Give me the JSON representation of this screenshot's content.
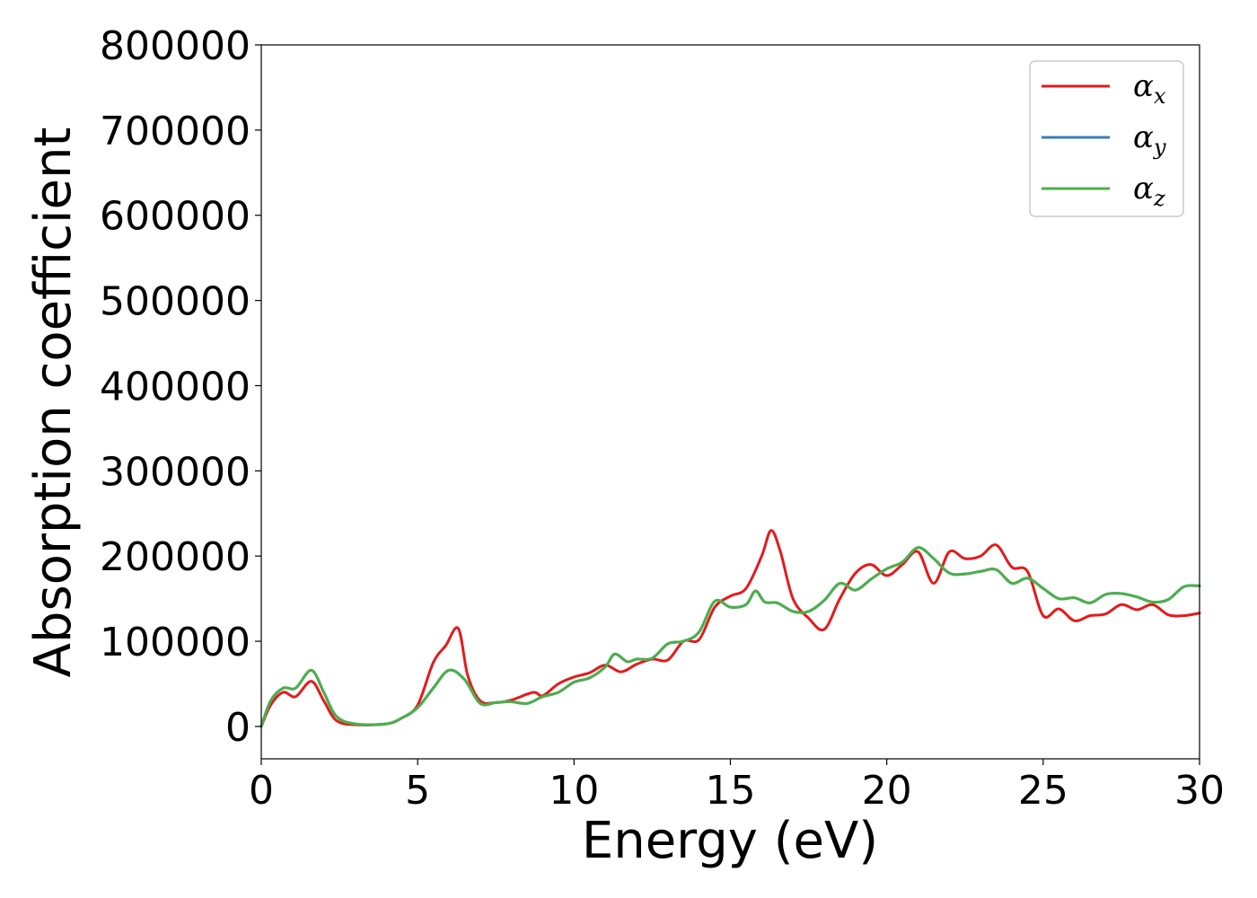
{
  "chart_data": {
    "type": "line",
    "title": "",
    "xlabel": "Energy (eV)",
    "ylabel": "Absorption coefficient",
    "xlim": [
      0,
      30
    ],
    "ylim": [
      -38000,
      800000
    ],
    "xticks": [
      0,
      5,
      10,
      15,
      20,
      25,
      30
    ],
    "xtick_labels": [
      "0",
      "5",
      "10",
      "15",
      "20",
      "25",
      "30"
    ],
    "yticks": [
      0,
      100000,
      200000,
      300000,
      400000,
      500000,
      600000,
      700000,
      800000
    ],
    "ytick_labels": [
      "0",
      "100000",
      "200000",
      "300000",
      "400000",
      "500000",
      "600000",
      "700000",
      "800000"
    ],
    "grid": false,
    "legend_position": "top-right",
    "series": [
      {
        "name": "α_x",
        "legend_symbol": "α",
        "legend_subscript": "x",
        "color": "#e41a1c",
        "x": [
          0,
          0.3,
          0.7,
          1.1,
          1.6,
          2.0,
          2.4,
          3.0,
          4.0,
          4.5,
          5.0,
          5.5,
          5.9,
          6.3,
          6.6,
          7.0,
          7.5,
          8.0,
          8.7,
          9.0,
          9.5,
          10.0,
          10.5,
          11.0,
          11.5,
          12.0,
          12.5,
          13.0,
          13.5,
          14.0,
          14.5,
          15.0,
          15.5,
          16.0,
          16.3,
          16.6,
          17.0,
          17.5,
          18.0,
          18.5,
          19.0,
          19.5,
          20.0,
          20.5,
          21.0,
          21.5,
          22.0,
          22.5,
          23.0,
          23.5,
          24.0,
          24.5,
          25.0,
          25.5,
          26.0,
          26.5,
          27.0,
          27.5,
          28.0,
          28.5,
          29.0,
          29.5,
          30.0
        ],
        "values": [
          0,
          25000,
          40000,
          35000,
          53000,
          30000,
          7000,
          2000,
          3000,
          10000,
          25000,
          75000,
          95000,
          115000,
          60000,
          30000,
          28000,
          31000,
          40000,
          36000,
          50000,
          58000,
          63000,
          72000,
          64000,
          73000,
          79000,
          78000,
          100000,
          102000,
          140000,
          153000,
          162000,
          200000,
          230000,
          205000,
          150000,
          127000,
          114000,
          150000,
          180000,
          190000,
          177000,
          190000,
          205000,
          168000,
          205000,
          197000,
          200000,
          213000,
          187000,
          182000,
          130000,
          138000,
          124000,
          130000,
          132000,
          143000,
          137000,
          143000,
          131000,
          130000,
          133000
        ]
      },
      {
        "name": "α_y",
        "legend_symbol": "α",
        "legend_subscript": "y",
        "color": "#377eb8",
        "x": [
          0,
          0.3,
          0.7,
          1.1,
          1.6,
          2.0,
          2.4,
          3.0,
          4.0,
          4.5,
          5.0,
          5.5,
          6.0,
          6.5,
          7.0,
          7.5,
          8.0,
          8.5,
          9.0,
          9.5,
          10.0,
          10.5,
          11.0,
          11.3,
          11.7,
          12.0,
          12.5,
          13.0,
          13.5,
          14.0,
          14.5,
          15.0,
          15.5,
          15.8,
          16.1,
          16.5,
          17.0,
          17.5,
          18.0,
          18.5,
          19.0,
          19.5,
          20.0,
          20.5,
          21.0,
          21.5,
          22.0,
          22.5,
          23.0,
          23.5,
          24.0,
          24.5,
          25.0,
          25.5,
          26.0,
          26.5,
          27.0,
          27.5,
          28.0,
          28.5,
          29.0,
          29.5,
          30.0
        ],
        "values": [
          0,
          30000,
          45000,
          45000,
          66000,
          40000,
          12000,
          3000,
          3000,
          10000,
          22000,
          45000,
          66000,
          55000,
          27000,
          28000,
          29000,
          27000,
          35000,
          40000,
          52000,
          57000,
          70000,
          85000,
          76000,
          79000,
          80000,
          97000,
          100000,
          111000,
          147000,
          140000,
          143000,
          159000,
          146000,
          145000,
          135000,
          135000,
          148000,
          168000,
          160000,
          173000,
          185000,
          193000,
          210000,
          197000,
          180000,
          179000,
          182000,
          184000,
          168000,
          174000,
          162000,
          150000,
          151000,
          145000,
          155000,
          156000,
          152000,
          146000,
          149000,
          164000,
          165000
        ]
      },
      {
        "name": "α_z",
        "legend_symbol": "α",
        "legend_subscript": "z",
        "color": "#4daf4a",
        "x": [
          0,
          0.3,
          0.7,
          1.1,
          1.6,
          2.0,
          2.4,
          3.0,
          4.0,
          4.5,
          5.0,
          5.5,
          6.0,
          6.5,
          7.0,
          7.5,
          8.0,
          8.5,
          9.0,
          9.5,
          10.0,
          10.5,
          11.0,
          11.3,
          11.7,
          12.0,
          12.5,
          13.0,
          13.5,
          14.0,
          14.5,
          15.0,
          15.5,
          15.8,
          16.1,
          16.5,
          17.0,
          17.5,
          18.0,
          18.5,
          19.0,
          19.5,
          20.0,
          20.5,
          21.0,
          21.5,
          22.0,
          22.5,
          23.0,
          23.5,
          24.0,
          24.5,
          25.0,
          25.5,
          26.0,
          26.5,
          27.0,
          27.5,
          28.0,
          28.5,
          29.0,
          29.5,
          30.0
        ],
        "values": [
          0,
          30000,
          45000,
          45000,
          66000,
          40000,
          12000,
          3000,
          3000,
          10000,
          22000,
          45000,
          66000,
          55000,
          27000,
          28000,
          29000,
          27000,
          35000,
          40000,
          52000,
          57000,
          70000,
          85000,
          76000,
          79000,
          80000,
          97000,
          100000,
          111000,
          147000,
          140000,
          143000,
          159000,
          146000,
          145000,
          135000,
          135000,
          148000,
          168000,
          160000,
          173000,
          185000,
          193000,
          210000,
          197000,
          180000,
          179000,
          182000,
          184000,
          168000,
          174000,
          162000,
          150000,
          151000,
          145000,
          155000,
          156000,
          152000,
          146000,
          149000,
          164000,
          165000
        ]
      }
    ]
  }
}
